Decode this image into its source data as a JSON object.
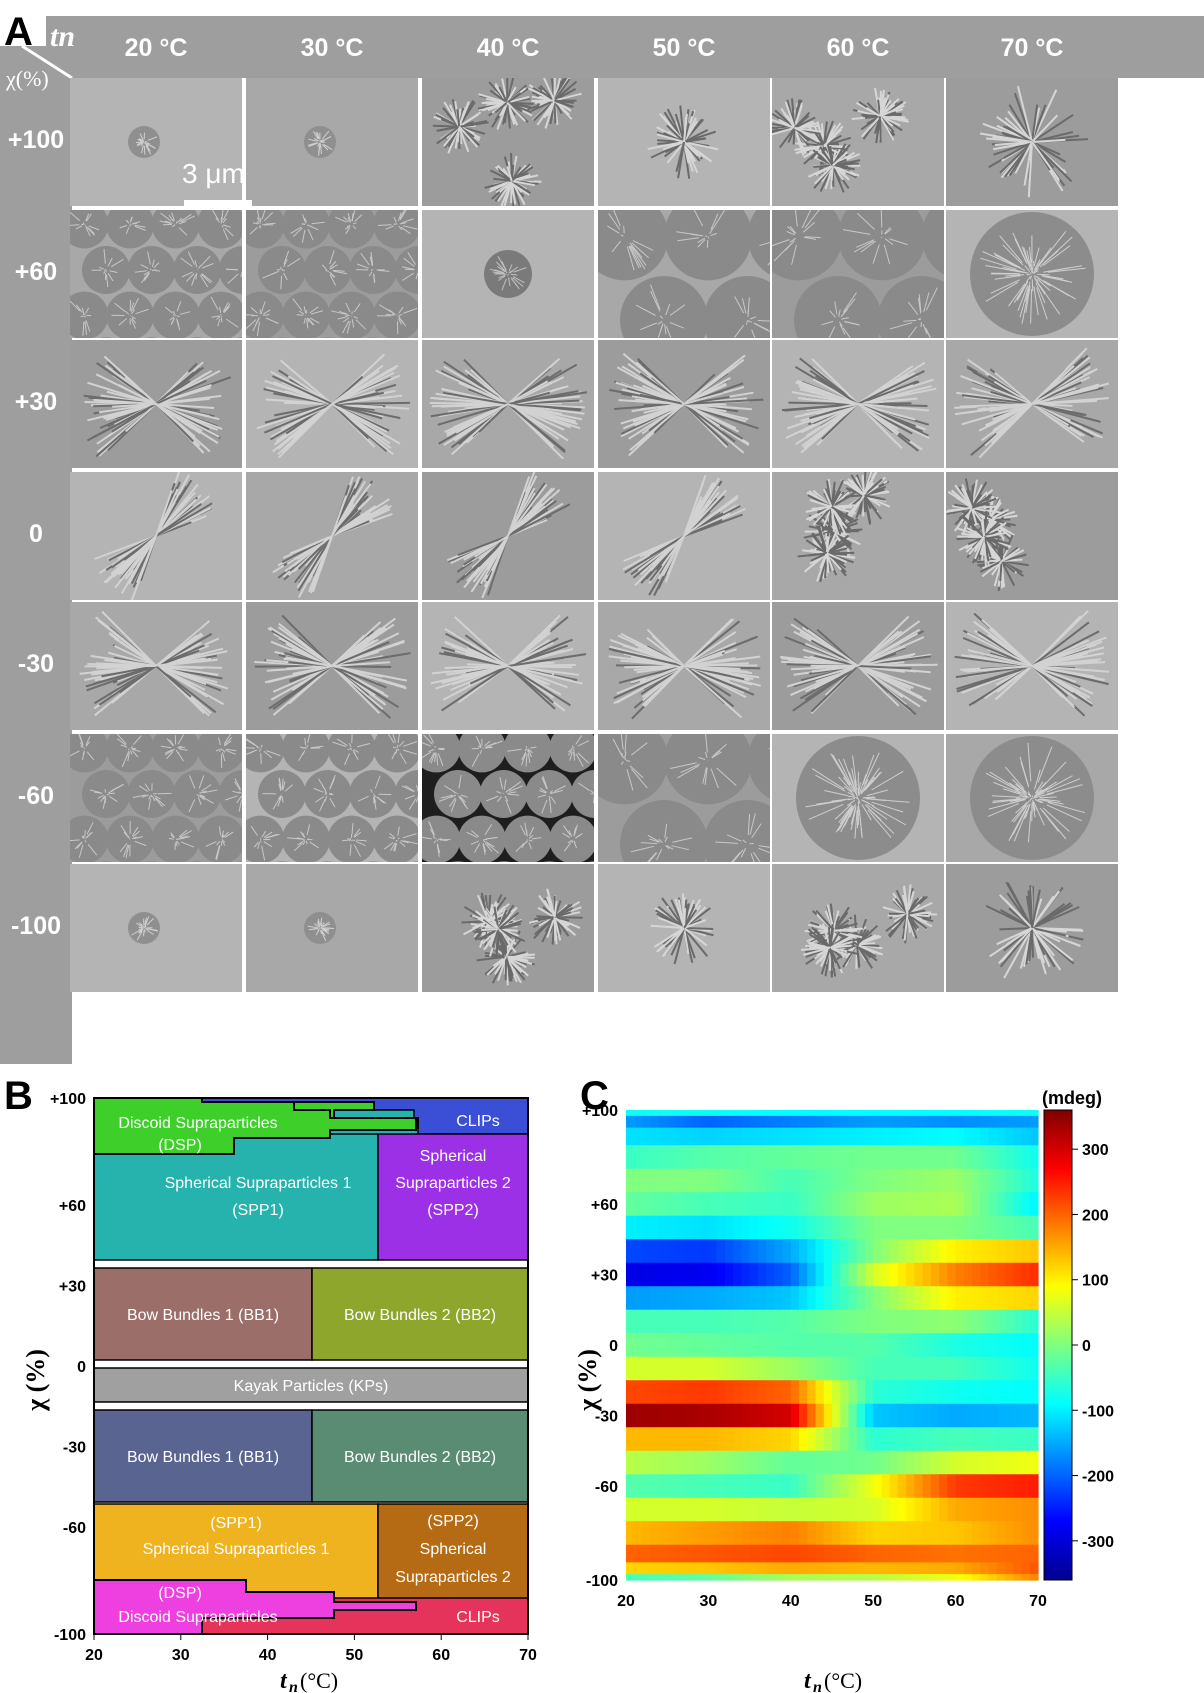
{
  "panel_a": {
    "letter": "A",
    "corner_top": "tn",
    "corner_left": "χ(%)",
    "temperatures": [
      "20 °C",
      "30 °C",
      "40 °C",
      "50 °C",
      "60 °C",
      "70 °C"
    ],
    "chi_values": [
      "+100",
      "+60",
      "+30",
      "0",
      "-30",
      "-60",
      "-100"
    ],
    "scale_bar": "3 μm",
    "morphology_grid": [
      [
        "small-flower",
        "small-flower",
        "cluster",
        "flower",
        "cluster",
        "large-flower"
      ],
      [
        "spheres",
        "spheres",
        "single-sphere",
        "large-spheres",
        "large-spheres",
        "large-sphere"
      ],
      [
        "bow-bundle",
        "bow-bundle",
        "bow-bundle",
        "bow-bundle",
        "bow-bundle",
        "bow-bundle"
      ],
      [
        "kayak",
        "kayak",
        "kayak",
        "kayak",
        "kayak-cluster",
        "kayak-cluster"
      ],
      [
        "bow-bundle",
        "bow-bundle",
        "bow-bundle",
        "bow-bundle",
        "bow-bundle",
        "bow-bundle"
      ],
      [
        "spheres",
        "spheres",
        "spheres-dark",
        "large-spheres",
        "large-sphere",
        "large-sphere"
      ],
      [
        "small-flower",
        "small-flower",
        "cluster",
        "flower",
        "cluster",
        "large-flower"
      ]
    ]
  },
  "panel_b": {
    "letter": "B",
    "ylabel": "χ (%)",
    "xlabel_main": "t",
    "xlabel_sub": "n",
    "xlabel_unit": "(°C)",
    "y_ticks": [
      "+100",
      "+60",
      "+30",
      "0",
      "-30",
      "-60",
      "-100"
    ],
    "x_ticks": [
      "20",
      "30",
      "40",
      "50",
      "60",
      "70"
    ],
    "regions": {
      "clips_top": "CLIPs",
      "dsp_top_1": "Discoid Supraparticles",
      "dsp_top_2": "(DSP)",
      "spp1_top_1": "Spherical Supraparticles 1",
      "spp1_top_2": "(SPP1)",
      "spp2_top_1": "Spherical",
      "spp2_top_2": "Supraparticles 2",
      "spp2_top_3": "(SPP2)",
      "bb1_top": "Bow Bundles 1 (BB1)",
      "bb2_top": "Bow Bundles 2 (BB2)",
      "kp": "Kayak Particles (KPs)",
      "bb1_bot": "Bow Bundles 1 (BB1)",
      "bb2_bot": "Bow Bundles 2 (BB2)",
      "spp1_bot_1": "(SPP1)",
      "spp1_bot_2": "Spherical Supraparticles 1",
      "spp2_bot_1": "(SPP2)",
      "spp2_bot_2": "Spherical",
      "spp2_bot_3": "Supraparticles 2",
      "dsp_bot_1": "(DSP)",
      "dsp_bot_2": "Discoid Supraparticles",
      "clips_bot": "CLIPs"
    },
    "colors": {
      "clips_top": "#3a4fd6",
      "dsp_top": "#3ecf2a",
      "spp1_top": "#26b3ad",
      "spp2_top": "#9b30e6",
      "bb1_top": "#9b6e6a",
      "bb2_top": "#8fa62c",
      "kp": "#a0a0a0",
      "bb1_bot": "#5a6491",
      "bb2_bot": "#5a8c74",
      "spp1_bot": "#f0b320",
      "spp2_bot": "#b56b14",
      "dsp_bot": "#ee3fe0",
      "clips_bot": "#e6335c"
    },
    "chart_data": {
      "type": "phase-diagram",
      "xlabel": "tn (°C)",
      "ylabel": "χ (%)",
      "xlim": [
        20,
        70
      ],
      "ylim": [
        -100,
        100
      ]
    }
  },
  "panel_c": {
    "letter": "C",
    "ylabel": "χ (%)",
    "xlabel_main": "t",
    "xlabel_sub": "n",
    "xlabel_unit": "(°C)",
    "colorbar_title": "(mdeg)",
    "colorbar_ticks": [
      "300",
      "200",
      "100",
      "0",
      "-100",
      "-200",
      "-300"
    ],
    "y_ticks": [
      "+100",
      "+60",
      "+30",
      "0",
      "-30",
      "-60",
      "-100"
    ],
    "x_ticks": [
      "20",
      "30",
      "40",
      "50",
      "60",
      "70"
    ],
    "chart_data": {
      "type": "heatmap",
      "xlabel": "tn (°C)",
      "ylabel": "χ (%)",
      "xlim": [
        20,
        70
      ],
      "ylim": [
        -100,
        100
      ],
      "zlim": [
        -360,
        360
      ],
      "colorbar_label": "(mdeg)",
      "x": [
        20,
        30,
        40,
        50,
        60,
        70
      ],
      "y": [
        100,
        95,
        90,
        80,
        70,
        60,
        50,
        40,
        30,
        20,
        10,
        0,
        -10,
        -20,
        -30,
        -40,
        -50,
        -60,
        -70,
        -80,
        -90,
        -95,
        -100
      ],
      "z": [
        [
          -80,
          -80,
          -90,
          -90,
          -90,
          -80
        ],
        [
          -160,
          -200,
          -180,
          -160,
          -170,
          -160
        ],
        [
          -110,
          -120,
          -110,
          -100,
          -90,
          -130
        ],
        [
          -50,
          -30,
          -20,
          -10,
          -10,
          -80
        ],
        [
          0,
          0,
          -40,
          0,
          20,
          -70
        ],
        [
          -20,
          -40,
          -50,
          20,
          30,
          -100
        ],
        [
          -100,
          -110,
          -80,
          0,
          0,
          -40
        ],
        [
          -220,
          -230,
          -150,
          0,
          100,
          130
        ],
        [
          -290,
          -280,
          -200,
          60,
          180,
          240
        ],
        [
          -160,
          -150,
          -130,
          0,
          100,
          120
        ],
        [
          -40,
          -40,
          -30,
          0,
          10,
          -60
        ],
        [
          -10,
          -20,
          -30,
          -30,
          -70,
          -90
        ],
        [
          60,
          60,
          20,
          -40,
          -40,
          -80
        ],
        [
          220,
          230,
          200,
          -60,
          -80,
          -90
        ],
        [
          340,
          330,
          300,
          -130,
          -150,
          -140
        ],
        [
          140,
          140,
          120,
          -60,
          -40,
          -50
        ],
        [
          40,
          20,
          -20,
          -10,
          60,
          80
        ],
        [
          -30,
          -40,
          -50,
          80,
          230,
          250
        ],
        [
          60,
          60,
          50,
          60,
          150,
          170
        ],
        [
          140,
          160,
          180,
          120,
          130,
          170
        ],
        [
          200,
          210,
          220,
          200,
          190,
          200
        ],
        [
          120,
          130,
          150,
          140,
          150,
          210
        ],
        [
          -40,
          -20,
          30,
          40,
          80,
          180
        ]
      ]
    }
  }
}
